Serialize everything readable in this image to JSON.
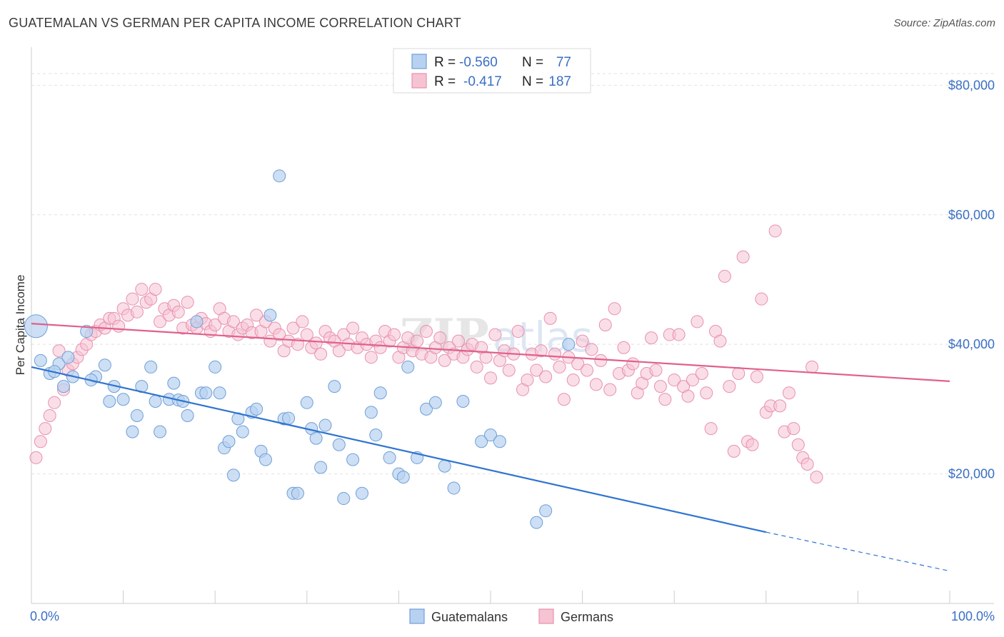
{
  "header": {
    "title": "GUATEMALAN VS GERMAN PER CAPITA INCOME CORRELATION CHART",
    "source": "Source: ZipAtlas.com"
  },
  "legend": {
    "r_label": "R =",
    "n_label": "N =",
    "series": [
      {
        "r": "-0.560",
        "n": "77"
      },
      {
        "r": "-0.417",
        "n": "187"
      }
    ]
  },
  "bottom_legend": [
    "Guatemalans",
    "Germans"
  ],
  "colors": {
    "guatemalans_fill": "#b8d1f0",
    "guatemalans_stroke": "#6f9fd8",
    "guatemalans_line": "#2f74d0",
    "germans_fill": "#f6c3d3",
    "germans_stroke": "#e890ae",
    "germans_line": "#e0608c",
    "tick_text": "#3a6fc4"
  },
  "chart_data": {
    "type": "scatter",
    "title": "GUATEMALAN VS GERMAN PER CAPITA INCOME CORRELATION CHART",
    "ylabel": "Per Capita Income",
    "xlabel": "",
    "xlim": [
      0,
      100
    ],
    "ylim": [
      0,
      85000
    ],
    "x_tick_labels": [
      "0.0%",
      "100.0%"
    ],
    "y_ticks": [
      20000,
      40000,
      60000,
      80000
    ],
    "y_tick_labels": [
      "$20,000",
      "$40,000",
      "$60,000",
      "$80,000"
    ],
    "grid": true,
    "legend_position": "top-center",
    "series": [
      {
        "name": "Guatemalans",
        "r": -0.56,
        "n": 77,
        "trend": {
          "x0": 0,
          "y0": 36500,
          "x1": 80,
          "y1": 11000,
          "dashed_to_x": 100,
          "dashed_to_y": 5000
        },
        "points": [
          [
            0.5,
            42800,
            "big"
          ],
          [
            1,
            37500
          ],
          [
            2,
            35500
          ],
          [
            3,
            37000
          ],
          [
            2.5,
            35800
          ],
          [
            3.5,
            33500
          ],
          [
            4,
            38000
          ],
          [
            4.5,
            35000
          ],
          [
            6,
            42000
          ],
          [
            7,
            35000
          ],
          [
            6.5,
            34500
          ],
          [
            8,
            36800
          ],
          [
            8.5,
            31200
          ],
          [
            9,
            33500
          ],
          [
            10,
            31500
          ],
          [
            11,
            26500
          ],
          [
            11.5,
            29000
          ],
          [
            12,
            33500
          ],
          [
            13,
            36500
          ],
          [
            13.5,
            31200
          ],
          [
            14,
            26500
          ],
          [
            15,
            31500
          ],
          [
            15.5,
            34000
          ],
          [
            16,
            31400
          ],
          [
            16.5,
            31200
          ],
          [
            17,
            29000
          ],
          [
            18,
            43500
          ],
          [
            18.5,
            32500
          ],
          [
            19,
            32500
          ],
          [
            20,
            36500
          ],
          [
            20.5,
            32500
          ],
          [
            21,
            24000
          ],
          [
            21.5,
            25000
          ],
          [
            22,
            19800
          ],
          [
            22.5,
            28500
          ],
          [
            23,
            26500
          ],
          [
            24,
            29500
          ],
          [
            24.5,
            30000
          ],
          [
            25,
            23500
          ],
          [
            25.5,
            22200
          ],
          [
            26,
            44500
          ],
          [
            27,
            66000
          ],
          [
            27.5,
            28500
          ],
          [
            28,
            28600
          ],
          [
            28.5,
            17000
          ],
          [
            29,
            17000
          ],
          [
            30,
            31000
          ],
          [
            30.5,
            27000
          ],
          [
            31,
            25500
          ],
          [
            31.5,
            21000
          ],
          [
            32,
            27500
          ],
          [
            33,
            33500
          ],
          [
            33.5,
            24500
          ],
          [
            34,
            16200
          ],
          [
            35,
            22200
          ],
          [
            36,
            17000
          ],
          [
            37,
            29500
          ],
          [
            37.5,
            26000
          ],
          [
            38,
            32500
          ],
          [
            39,
            22500
          ],
          [
            40,
            20000
          ],
          [
            40.5,
            19500
          ],
          [
            41,
            36500
          ],
          [
            42,
            22500
          ],
          [
            43,
            30000
          ],
          [
            44,
            31000
          ],
          [
            45,
            21200
          ],
          [
            46,
            17800
          ],
          [
            47,
            31200
          ],
          [
            49,
            25000
          ],
          [
            50,
            26000
          ],
          [
            51,
            25000
          ],
          [
            55,
            12500
          ],
          [
            56,
            14300
          ],
          [
            58.5,
            40000
          ]
        ]
      },
      {
        "name": "Germans",
        "r": -0.417,
        "n": 187,
        "trend": {
          "x0": 0,
          "y0": 43200,
          "x1": 100,
          "y1": 34300
        },
        "points": [
          [
            0.5,
            22500
          ],
          [
            1,
            25000
          ],
          [
            1.5,
            27000
          ],
          [
            2,
            29000
          ],
          [
            2.5,
            31000
          ],
          [
            3,
            39000
          ],
          [
            3.5,
            33000
          ],
          [
            4,
            36000
          ],
          [
            4.5,
            37000
          ],
          [
            5,
            38000
          ],
          [
            5.5,
            39200
          ],
          [
            6,
            40000
          ],
          [
            6.5,
            41500
          ],
          [
            7,
            42000
          ],
          [
            7.5,
            43000
          ],
          [
            8,
            42500
          ],
          [
            8.5,
            44000
          ],
          [
            9,
            44000
          ],
          [
            9.5,
            42800
          ],
          [
            10,
            45500
          ],
          [
            10.5,
            44500
          ],
          [
            11,
            47000
          ],
          [
            11.5,
            45000
          ],
          [
            12,
            48500
          ],
          [
            12.5,
            46500
          ],
          [
            13,
            47000
          ],
          [
            13.5,
            48500
          ],
          [
            14,
            43500
          ],
          [
            14.5,
            45500
          ],
          [
            15,
            44500
          ],
          [
            15.5,
            46000
          ],
          [
            16,
            45000
          ],
          [
            16.5,
            42500
          ],
          [
            17,
            46500
          ],
          [
            17.5,
            43000
          ],
          [
            18,
            42500
          ],
          [
            18.5,
            44000
          ],
          [
            19,
            43200
          ],
          [
            19.5,
            42000
          ],
          [
            20,
            43000
          ],
          [
            20.5,
            45500
          ],
          [
            21,
            44000
          ],
          [
            21.5,
            42000
          ],
          [
            22,
            43500
          ],
          [
            22.5,
            41500
          ],
          [
            23,
            42500
          ],
          [
            23.5,
            43000
          ],
          [
            24,
            41800
          ],
          [
            24.5,
            44500
          ],
          [
            25,
            42000
          ],
          [
            25.5,
            43500
          ],
          [
            26,
            40500
          ],
          [
            26.5,
            42500
          ],
          [
            27,
            41500
          ],
          [
            27.5,
            39000
          ],
          [
            28,
            40500
          ],
          [
            28.5,
            42500
          ],
          [
            29,
            40000
          ],
          [
            29.5,
            43500
          ],
          [
            30,
            41500
          ],
          [
            30.5,
            39500
          ],
          [
            31,
            40200
          ],
          [
            31.5,
            38500
          ],
          [
            32,
            42000
          ],
          [
            32.5,
            41000
          ],
          [
            33,
            40500
          ],
          [
            33.5,
            39000
          ],
          [
            34,
            41500
          ],
          [
            34.5,
            40000
          ],
          [
            35,
            42500
          ],
          [
            35.5,
            39500
          ],
          [
            36,
            41000
          ],
          [
            36.5,
            40000
          ],
          [
            37,
            38000
          ],
          [
            37.5,
            40500
          ],
          [
            38,
            39500
          ],
          [
            38.5,
            42000
          ],
          [
            39,
            40500
          ],
          [
            39.5,
            41500
          ],
          [
            40,
            38000
          ],
          [
            40.5,
            39500
          ],
          [
            41,
            41000
          ],
          [
            41.5,
            39000
          ],
          [
            42,
            40500
          ],
          [
            42.5,
            38500
          ],
          [
            43,
            42000
          ],
          [
            43.5,
            38000
          ],
          [
            44,
            39500
          ],
          [
            44.5,
            41000
          ],
          [
            45,
            37500
          ],
          [
            45.5,
            39500
          ],
          [
            46,
            38500
          ],
          [
            46.5,
            40500
          ],
          [
            47,
            38000
          ],
          [
            47.5,
            39200
          ],
          [
            48,
            40000
          ],
          [
            48.5,
            36500
          ],
          [
            49,
            39500
          ],
          [
            49.5,
            38000
          ],
          [
            50,
            34800
          ],
          [
            50.5,
            41500
          ],
          [
            51,
            37500
          ],
          [
            51.5,
            39000
          ],
          [
            52,
            36000
          ],
          [
            52.5,
            38500
          ],
          [
            53,
            42000
          ],
          [
            53.5,
            33000
          ],
          [
            54,
            34500
          ],
          [
            54.5,
            38500
          ],
          [
            55,
            36000
          ],
          [
            55.5,
            39000
          ],
          [
            56,
            35000
          ],
          [
            56.5,
            44000
          ],
          [
            57,
            38500
          ],
          [
            57.5,
            36500
          ],
          [
            58,
            31500
          ],
          [
            58.5,
            38000
          ],
          [
            59,
            34500
          ],
          [
            59.5,
            37000
          ],
          [
            60,
            40500
          ],
          [
            60.5,
            36000
          ],
          [
            61,
            39200
          ],
          [
            61.5,
            33800
          ],
          [
            62,
            37500
          ],
          [
            62.5,
            43000
          ],
          [
            63,
            33000
          ],
          [
            63.5,
            45500
          ],
          [
            64,
            35500
          ],
          [
            64.5,
            39500
          ],
          [
            65,
            36000
          ],
          [
            65.5,
            37000
          ],
          [
            66,
            32500
          ],
          [
            66.5,
            34000
          ],
          [
            67,
            35500
          ],
          [
            67.5,
            41000
          ],
          [
            68,
            36000
          ],
          [
            68.5,
            33500
          ],
          [
            69,
            31500
          ],
          [
            69.5,
            41500
          ],
          [
            70,
            34500
          ],
          [
            70.5,
            41500
          ],
          [
            71,
            33500
          ],
          [
            71.5,
            32000
          ],
          [
            72,
            34500
          ],
          [
            72.5,
            43500
          ],
          [
            73,
            35500
          ],
          [
            73.5,
            32500
          ],
          [
            74,
            27000
          ],
          [
            74.5,
            42000
          ],
          [
            75,
            40500
          ],
          [
            75.5,
            50500
          ],
          [
            76,
            33500
          ],
          [
            76.5,
            23500
          ],
          [
            77,
            35500
          ],
          [
            77.5,
            53500
          ],
          [
            78,
            25000
          ],
          [
            78.5,
            24500
          ],
          [
            79,
            35000
          ],
          [
            79.5,
            47000
          ],
          [
            80,
            29500
          ],
          [
            80.5,
            30500
          ],
          [
            81,
            57500
          ],
          [
            81.5,
            30500
          ],
          [
            82,
            26500
          ],
          [
            82.5,
            32500
          ],
          [
            83,
            27000
          ],
          [
            83.5,
            24500
          ],
          [
            84,
            22500
          ],
          [
            84.5,
            21500
          ],
          [
            85,
            36500
          ],
          [
            85.5,
            19500
          ]
        ]
      }
    ]
  }
}
